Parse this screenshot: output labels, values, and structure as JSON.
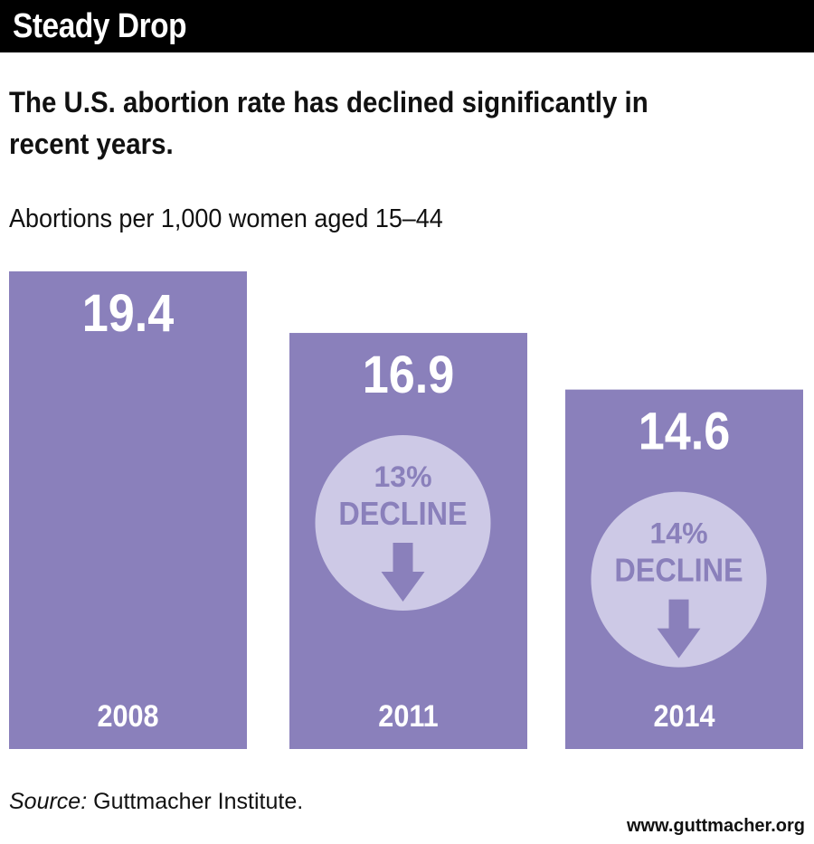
{
  "header": {
    "title": "Steady Drop"
  },
  "subtitle": "The U.S. abortion rate has declined significantly in recent years.",
  "source": {
    "label": "Source:",
    "text": "Guttmacher Institute."
  },
  "website": "www.guttmacher.org",
  "chart_data": {
    "type": "bar",
    "title": "",
    "ylabel": "Abortions per 1,000 women aged 15–44",
    "xlabel": "",
    "categories": [
      "2008",
      "2011",
      "2014"
    ],
    "values": [
      19.4,
      16.9,
      14.6
    ],
    "value_labels": [
      "19.4",
      "16.9",
      "14.6"
    ],
    "annotations": [
      {
        "category": "2011",
        "line1": "13%",
        "line2": "DECLINE",
        "icon": "down-arrow-icon"
      },
      {
        "category": "2014",
        "line1": "14%",
        "line2": "DECLINE",
        "icon": "down-arrow-icon"
      }
    ],
    "grid": false,
    "legend": "none",
    "colors": {
      "bar": "#8a80bb",
      "circle": "#cdc9e6",
      "bar_text": "#ffffff",
      "circle_text": "#8a80bb"
    }
  }
}
